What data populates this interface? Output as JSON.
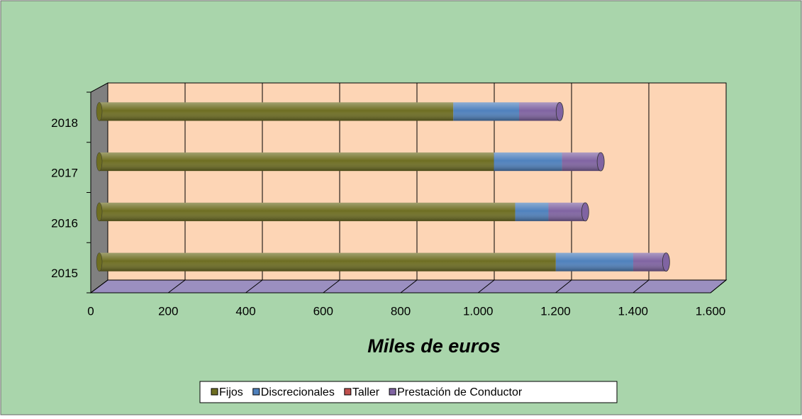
{
  "chart_data": {
    "type": "bar3d_stacked_horizontal",
    "x_label": "Miles de euros",
    "categories": [
      "2015",
      "2016",
      "2017",
      "2018"
    ],
    "series": [
      {
        "name": "Fijos",
        "color": "#6e6e22",
        "values": [
          1180,
          1075,
          1020,
          915
        ]
      },
      {
        "name": "Discrecionales",
        "color": "#4f81bd",
        "values": [
          200,
          86,
          176,
          170
        ]
      },
      {
        "name": "Taller",
        "color": "#c0504d",
        "values": [
          0,
          0,
          0,
          0
        ]
      },
      {
        "name": "Prestación de Conductor",
        "color": "#8064a2",
        "values": [
          85,
          95,
          100,
          105
        ]
      }
    ],
    "xlim": [
      0,
      1600
    ],
    "xticks": [
      0,
      200,
      400,
      600,
      800,
      {
        "value": 1000,
        "label": "1.000"
      },
      {
        "value": 1200,
        "label": "1.200"
      },
      {
        "value": 1400,
        "label": "1.400"
      },
      {
        "value": 1600,
        "label": "1.600"
      }
    ],
    "grid": true,
    "legend": "bottom"
  }
}
